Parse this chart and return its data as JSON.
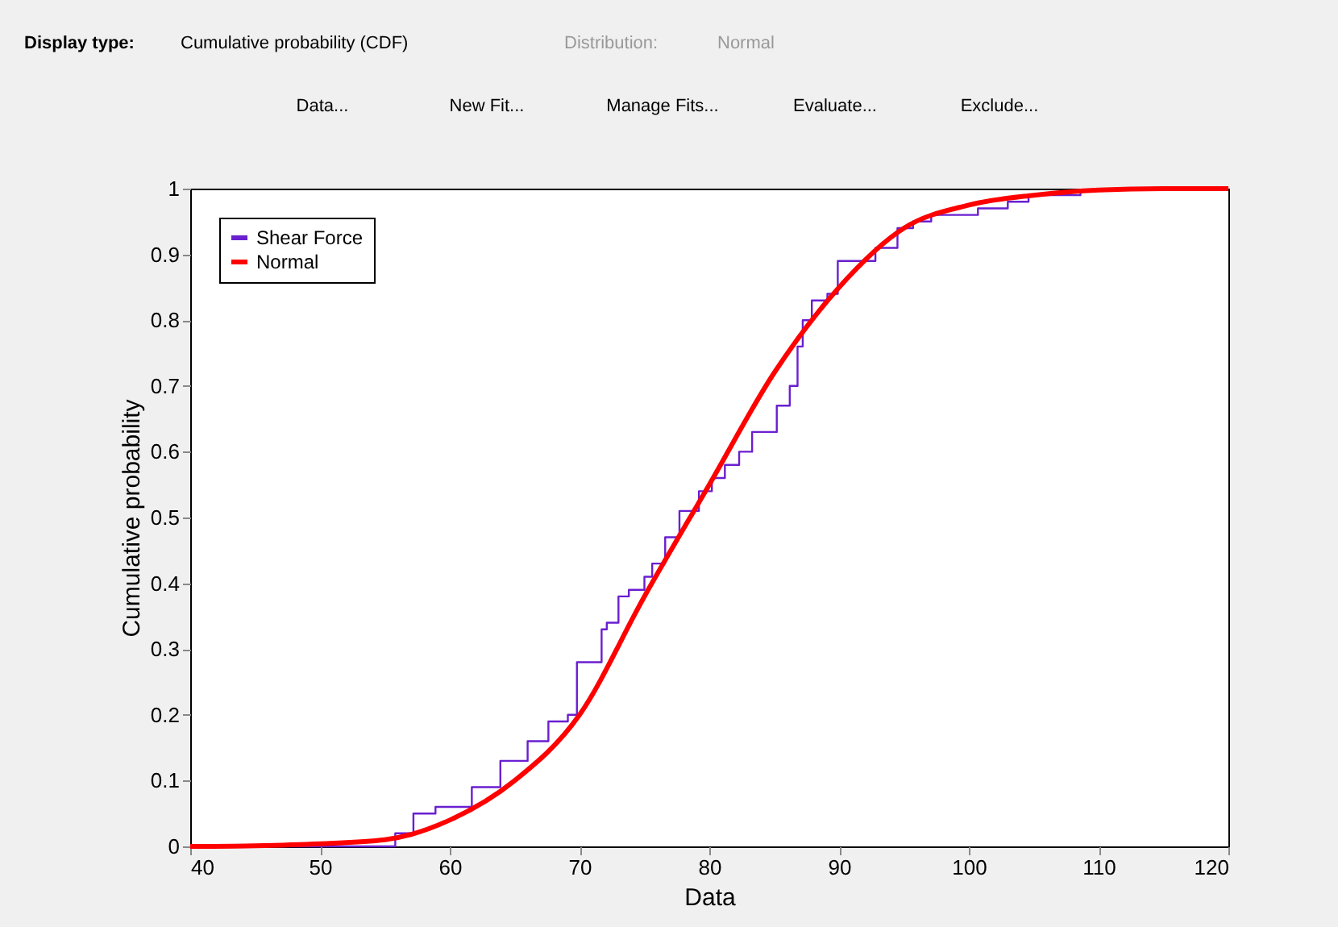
{
  "chart_data": {
    "type": "step",
    "xlabel": "Data",
    "ylabel": "Cumulative probability",
    "xlim": [
      40,
      120
    ],
    "ylim": [
      0,
      1
    ],
    "xticks": [
      40,
      50,
      60,
      70,
      80,
      90,
      100,
      110,
      120
    ],
    "yticks": [
      0,
      0.1,
      0.2,
      0.3,
      0.4,
      0.5,
      0.6,
      0.7,
      0.8,
      0.9,
      1
    ],
    "grid": false,
    "legend": "top left",
    "line_style": "solid",
    "marker": "none",
    "annotations": [
      "Display type:",
      "Cumulative probability (CDF)",
      "Distribution:",
      "Normal",
      "Data...",
      "New Fit...",
      "Manage Fits...",
      "Evaluate...",
      "Exclude..."
    ],
    "series": [
      {
        "name": "Shear Force",
        "color": "#6a1fd0",
        "x": [
          40,
          55.8,
          57.2,
          58.9,
          61.7,
          63.9,
          66,
          67.6,
          69.1,
          69.8,
          71.7,
          72.1,
          73,
          73.8,
          75,
          75.6,
          76.6,
          77.7,
          79.2,
          80.2,
          81.2,
          82.3,
          83.3,
          85.2,
          86.2,
          86.8,
          87.2,
          87.9,
          89.1,
          89.9,
          92.8,
          94.5,
          95.7,
          97.1,
          100.7,
          103,
          104.6,
          108.6
        ],
        "values": [
          0,
          0.02,
          0.05,
          0.06,
          0.09,
          0.13,
          0.16,
          0.19,
          0.2,
          0.28,
          0.33,
          0.34,
          0.38,
          0.39,
          0.41,
          0.43,
          0.47,
          0.51,
          0.54,
          0.56,
          0.58,
          0.6,
          0.63,
          0.67,
          0.7,
          0.76,
          0.8,
          0.83,
          0.84,
          0.89,
          0.91,
          0.94,
          0.95,
          0.96,
          0.97,
          0.98,
          0.99,
          1
        ]
      },
      {
        "name": "Normal",
        "type": "line",
        "color": "#ff0000",
        "x": [
          40,
          45,
          50,
          55,
          60,
          65,
          70,
          75,
          80,
          85,
          90,
          95,
          100,
          105,
          110,
          115,
          120
        ],
        "values": [
          0,
          0.001,
          0.004,
          0.01,
          0.04,
          0.1,
          0.2,
          0.38,
          0.55,
          0.72,
          0.85,
          0.94,
          0.975,
          0.99,
          0.998,
          1,
          1
        ]
      }
    ]
  }
}
